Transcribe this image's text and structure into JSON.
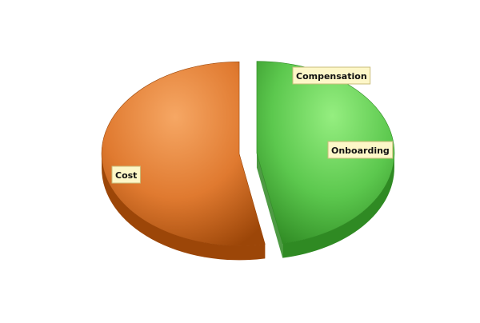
{
  "chart_data": {
    "type": "pie",
    "style": "3d-exploded",
    "slices": [
      {
        "label": "Compensation",
        "value": 0.5,
        "color": "#5cc84e",
        "color_light": "#95ee80",
        "color_dark": "#2f8a23"
      },
      {
        "label": "Onboarding",
        "value": 46.5,
        "color": "#5cc84e",
        "color_light": "#95ee80",
        "color_dark": "#2f8a23"
      },
      {
        "label": "Cost",
        "value": 53,
        "color": "#e07a30",
        "color_light": "#f6a764",
        "color_dark": "#9c4608"
      }
    ],
    "legend": "none"
  }
}
